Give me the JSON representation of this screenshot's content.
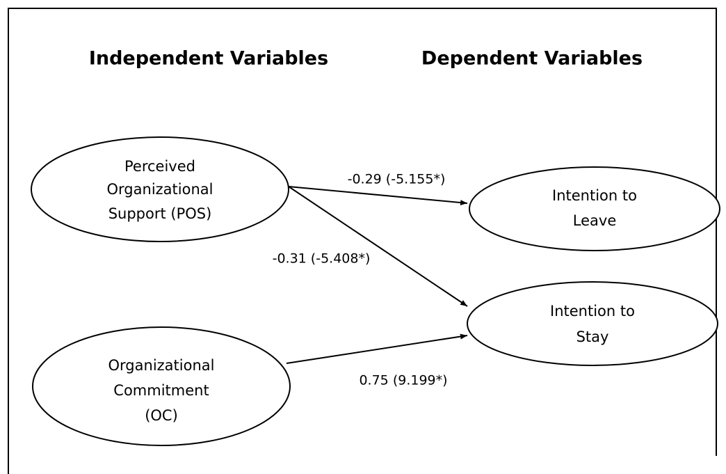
{
  "headings": {
    "independent": "Independent Variables",
    "dependent": "Dependent Variables"
  },
  "nodes": [
    {
      "lines": [
        "Perceived",
        "Organizational",
        "Support (POS)"
      ]
    },
    {
      "lines": [
        "Intention to",
        "Leave"
      ]
    },
    {
      "lines": [
        "Intention to",
        "Stay"
      ]
    },
    {
      "lines": [
        "Organizational",
        "Commitment",
        "(OC)"
      ]
    }
  ],
  "edges": [
    {
      "label": "-0.29 (-5.155*)"
    },
    {
      "label": "-0.31 (-5.408*)"
    },
    {
      "label": "0.75 (9.199*)"
    }
  ]
}
